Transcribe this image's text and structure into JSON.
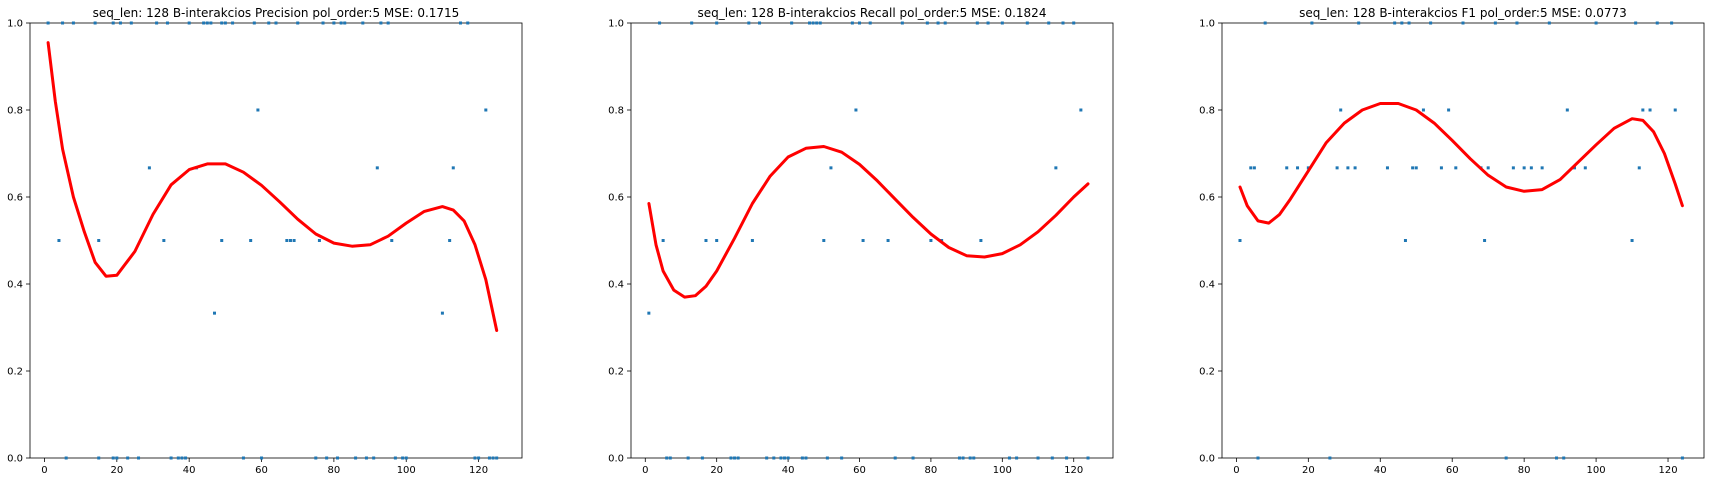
{
  "chart_data": [
    {
      "type": "scatter",
      "title": "seq_len: 128    B-interakcios   Precision   pol_order:5   MSE: 0.1715",
      "xlim": [
        -4,
        132
      ],
      "ylim": [
        0,
        1
      ],
      "xticks": [
        "0",
        "20",
        "40",
        "60",
        "80",
        "100",
        "120"
      ],
      "xtick_values": [
        0,
        20,
        40,
        60,
        80,
        100,
        120
      ],
      "yticks": [
        "0.0",
        "0.2",
        "0.4",
        "0.6",
        "0.8",
        "1.0"
      ],
      "ytick_values": [
        0,
        0.2,
        0.4,
        0.6,
        0.8,
        1.0
      ],
      "points_color": "#1f77b4",
      "fit_color": "#ff0000",
      "points": [
        [
          1,
          1
        ],
        [
          4,
          0.5
        ],
        [
          5,
          1
        ],
        [
          6,
          0
        ],
        [
          8,
          1
        ],
        [
          14,
          1
        ],
        [
          15,
          0.5
        ],
        [
          15,
          0
        ],
        [
          19,
          1
        ],
        [
          19,
          0
        ],
        [
          20,
          0
        ],
        [
          21,
          1
        ],
        [
          23,
          0
        ],
        [
          24,
          1
        ],
        [
          26,
          0
        ],
        [
          29,
          0.667
        ],
        [
          31,
          1
        ],
        [
          33,
          0.5
        ],
        [
          34,
          1
        ],
        [
          35,
          0
        ],
        [
          37,
          0
        ],
        [
          38,
          0
        ],
        [
          39,
          0
        ],
        [
          40,
          1
        ],
        [
          42,
          0.667
        ],
        [
          44,
          1
        ],
        [
          45,
          1
        ],
        [
          46,
          1
        ],
        [
          47,
          0.333
        ],
        [
          49,
          0.5
        ],
        [
          49,
          1
        ],
        [
          50,
          1
        ],
        [
          52,
          1
        ],
        [
          55,
          0
        ],
        [
          57,
          0.5
        ],
        [
          58,
          1
        ],
        [
          59,
          0.8
        ],
        [
          60,
          0
        ],
        [
          62,
          1
        ],
        [
          64,
          1
        ],
        [
          67,
          0.5
        ],
        [
          68,
          0.5
        ],
        [
          69,
          0.5
        ],
        [
          70,
          1
        ],
        [
          75,
          0
        ],
        [
          76,
          0.5
        ],
        [
          77,
          1
        ],
        [
          78,
          0
        ],
        [
          80,
          1
        ],
        [
          81,
          0
        ],
        [
          82,
          1
        ],
        [
          83,
          1
        ],
        [
          86,
          0
        ],
        [
          88,
          1
        ],
        [
          89,
          0
        ],
        [
          91,
          0
        ],
        [
          92,
          0.667
        ],
        [
          93,
          1
        ],
        [
          95,
          1
        ],
        [
          96,
          0.5
        ],
        [
          97,
          0
        ],
        [
          99,
          0
        ],
        [
          100,
          0
        ],
        [
          110,
          0.333
        ],
        [
          112,
          0.5
        ],
        [
          113,
          0.667
        ],
        [
          115,
          1
        ],
        [
          117,
          1
        ],
        [
          119,
          0
        ],
        [
          120,
          0
        ],
        [
          122,
          0.8
        ],
        [
          123,
          0
        ],
        [
          124,
          0
        ],
        [
          125,
          0
        ]
      ],
      "fit": [
        [
          1,
          0.955
        ],
        [
          3,
          0.82
        ],
        [
          5,
          0.71
        ],
        [
          8,
          0.6
        ],
        [
          11,
          0.52
        ],
        [
          14,
          0.45
        ],
        [
          17,
          0.418
        ],
        [
          20,
          0.42
        ],
        [
          25,
          0.475
        ],
        [
          30,
          0.56
        ],
        [
          35,
          0.628
        ],
        [
          40,
          0.663
        ],
        [
          45,
          0.676
        ],
        [
          50,
          0.676
        ],
        [
          55,
          0.657
        ],
        [
          60,
          0.627
        ],
        [
          65,
          0.589
        ],
        [
          70,
          0.549
        ],
        [
          75,
          0.515
        ],
        [
          80,
          0.494
        ],
        [
          85,
          0.487
        ],
        [
          90,
          0.49
        ],
        [
          95,
          0.51
        ],
        [
          100,
          0.54
        ],
        [
          105,
          0.567
        ],
        [
          110,
          0.578
        ],
        [
          113,
          0.57
        ],
        [
          116,
          0.545
        ],
        [
          119,
          0.49
        ],
        [
          122,
          0.41
        ],
        [
          125,
          0.293
        ]
      ]
    },
    {
      "type": "scatter",
      "title": "seq_len: 128    B-interakcios   Recall   pol_order:5   MSE: 0.1824",
      "xlim": [
        -4,
        131
      ],
      "ylim": [
        0,
        1
      ],
      "xticks": [
        "0",
        "20",
        "40",
        "60",
        "80",
        "100",
        "120"
      ],
      "xtick_values": [
        0,
        20,
        40,
        60,
        80,
        100,
        120
      ],
      "yticks": [
        "0.0",
        "0.2",
        "0.4",
        "0.6",
        "0.8",
        "1.0"
      ],
      "ytick_values": [
        0,
        0.2,
        0.4,
        0.6,
        0.8,
        1.0
      ],
      "points_color": "#1f77b4",
      "fit_color": "#ff0000",
      "points": [
        [
          1,
          0.333
        ],
        [
          4,
          1
        ],
        [
          5,
          0.5
        ],
        [
          6,
          0
        ],
        [
          7,
          0
        ],
        [
          12,
          0
        ],
        [
          13,
          1
        ],
        [
          16,
          0
        ],
        [
          17,
          0.5
        ],
        [
          20,
          0.5
        ],
        [
          20,
          1
        ],
        [
          24,
          0
        ],
        [
          25,
          0
        ],
        [
          26,
          0
        ],
        [
          29,
          1
        ],
        [
          30,
          0.5
        ],
        [
          32,
          1
        ],
        [
          34,
          0
        ],
        [
          36,
          0
        ],
        [
          38,
          0
        ],
        [
          39,
          0
        ],
        [
          40,
          0
        ],
        [
          41,
          1
        ],
        [
          44,
          0
        ],
        [
          45,
          0
        ],
        [
          46,
          1
        ],
        [
          47,
          1
        ],
        [
          48,
          1
        ],
        [
          49,
          1
        ],
        [
          50,
          0.5
        ],
        [
          51,
          0
        ],
        [
          52,
          0.667
        ],
        [
          55,
          0
        ],
        [
          58,
          1
        ],
        [
          59,
          0.8
        ],
        [
          60,
          1
        ],
        [
          61,
          0.5
        ],
        [
          63,
          1
        ],
        [
          68,
          0.5
        ],
        [
          70,
          0
        ],
        [
          72,
          1
        ],
        [
          75,
          0
        ],
        [
          79,
          1
        ],
        [
          80,
          0.5
        ],
        [
          82,
          1
        ],
        [
          83,
          0.5
        ],
        [
          84,
          1
        ],
        [
          88,
          0
        ],
        [
          89,
          0
        ],
        [
          91,
          0
        ],
        [
          92,
          0
        ],
        [
          93,
          1
        ],
        [
          94,
          0.5
        ],
        [
          96,
          1
        ],
        [
          100,
          1
        ],
        [
          102,
          0
        ],
        [
          104,
          0
        ],
        [
          107,
          1
        ],
        [
          110,
          0
        ],
        [
          113,
          1
        ],
        [
          114,
          0
        ],
        [
          115,
          0.667
        ],
        [
          117,
          1
        ],
        [
          118,
          0
        ],
        [
          120,
          1
        ],
        [
          122,
          0.8
        ],
        [
          124,
          0
        ]
      ],
      "fit": [
        [
          1,
          0.585
        ],
        [
          3,
          0.49
        ],
        [
          5,
          0.43
        ],
        [
          8,
          0.386
        ],
        [
          11,
          0.37
        ],
        [
          14,
          0.373
        ],
        [
          17,
          0.395
        ],
        [
          20,
          0.43
        ],
        [
          25,
          0.505
        ],
        [
          30,
          0.585
        ],
        [
          35,
          0.648
        ],
        [
          40,
          0.692
        ],
        [
          45,
          0.712
        ],
        [
          50,
          0.716
        ],
        [
          55,
          0.703
        ],
        [
          60,
          0.675
        ],
        [
          65,
          0.637
        ],
        [
          70,
          0.595
        ],
        [
          75,
          0.553
        ],
        [
          80,
          0.515
        ],
        [
          85,
          0.484
        ],
        [
          90,
          0.465
        ],
        [
          95,
          0.462
        ],
        [
          100,
          0.47
        ],
        [
          105,
          0.49
        ],
        [
          110,
          0.52
        ],
        [
          115,
          0.558
        ],
        [
          120,
          0.6
        ],
        [
          124,
          0.63
        ]
      ]
    },
    {
      "type": "scatter",
      "title": "seq_len: 128    B-interakcios   F1   pol_order:5   MSE: 0.0773",
      "xlim": [
        -4,
        130
      ],
      "ylim": [
        0,
        1
      ],
      "xticks": [
        "0",
        "20",
        "40",
        "60",
        "80",
        "100",
        "120"
      ],
      "xtick_values": [
        0,
        20,
        40,
        60,
        80,
        100,
        120
      ],
      "yticks": [
        "0.0",
        "0.2",
        "0.4",
        "0.6",
        "0.8",
        "1.0"
      ],
      "ytick_values": [
        0,
        0.2,
        0.4,
        0.6,
        0.8,
        1.0
      ],
      "points_color": "#1f77b4",
      "fit_color": "#ff0000",
      "points": [
        [
          1,
          0.5
        ],
        [
          4,
          0.667
        ],
        [
          5,
          0.667
        ],
        [
          6,
          0
        ],
        [
          8,
          1
        ],
        [
          14,
          0.667
        ],
        [
          17,
          0.667
        ],
        [
          20,
          0.667
        ],
        [
          21,
          1
        ],
        [
          26,
          0
        ],
        [
          28,
          0.667
        ],
        [
          29,
          0.8
        ],
        [
          31,
          0.667
        ],
        [
          33,
          0.667
        ],
        [
          34,
          1
        ],
        [
          42,
          0.667
        ],
        [
          44,
          1
        ],
        [
          46,
          1
        ],
        [
          47,
          0.5
        ],
        [
          48,
          1
        ],
        [
          49,
          0.667
        ],
        [
          50,
          0.667
        ],
        [
          52,
          0.8
        ],
        [
          54,
          1
        ],
        [
          57,
          0.667
        ],
        [
          59,
          0.8
        ],
        [
          61,
          0.667
        ],
        [
          63,
          1
        ],
        [
          68,
          0.667
        ],
        [
          69,
          0.5
        ],
        [
          70,
          0.667
        ],
        [
          72,
          1
        ],
        [
          75,
          0
        ],
        [
          77,
          0.667
        ],
        [
          78,
          1
        ],
        [
          80,
          0.667
        ],
        [
          82,
          0.667
        ],
        [
          85,
          0.667
        ],
        [
          87,
          1
        ],
        [
          89,
          0
        ],
        [
          91,
          0
        ],
        [
          92,
          0.8
        ],
        [
          94,
          0.667
        ],
        [
          97,
          0.667
        ],
        [
          100,
          1
        ],
        [
          110,
          0.5
        ],
        [
          111,
          1
        ],
        [
          112,
          0.667
        ],
        [
          113,
          0.8
        ],
        [
          115,
          0.8
        ],
        [
          117,
          1
        ],
        [
          121,
          1
        ],
        [
          122,
          0.8
        ],
        [
          124,
          0
        ]
      ],
      "fit": [
        [
          1,
          0.623
        ],
        [
          3,
          0.58
        ],
        [
          6,
          0.545
        ],
        [
          9,
          0.54
        ],
        [
          12,
          0.56
        ],
        [
          15,
          0.595
        ],
        [
          20,
          0.66
        ],
        [
          25,
          0.725
        ],
        [
          30,
          0.77
        ],
        [
          35,
          0.8
        ],
        [
          40,
          0.815
        ],
        [
          45,
          0.815
        ],
        [
          50,
          0.8
        ],
        [
          55,
          0.77
        ],
        [
          60,
          0.73
        ],
        [
          65,
          0.688
        ],
        [
          70,
          0.65
        ],
        [
          75,
          0.623
        ],
        [
          80,
          0.613
        ],
        [
          85,
          0.617
        ],
        [
          90,
          0.64
        ],
        [
          95,
          0.68
        ],
        [
          100,
          0.72
        ],
        [
          105,
          0.758
        ],
        [
          110,
          0.78
        ],
        [
          113,
          0.776
        ],
        [
          116,
          0.75
        ],
        [
          119,
          0.7
        ],
        [
          122,
          0.63
        ],
        [
          124,
          0.58
        ]
      ]
    }
  ]
}
